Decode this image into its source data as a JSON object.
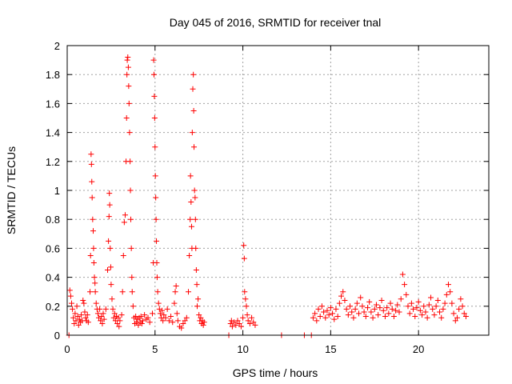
{
  "chart_data": {
    "type": "scatter",
    "title": "Day 045 of 2016, SRMTID for receiver tnal",
    "xlabel": "GPS time / hours",
    "ylabel": "SRMTID / TECUs",
    "xlim": [
      0,
      24
    ],
    "ylim": [
      0,
      2
    ],
    "xticks": [
      0,
      5,
      10,
      15,
      20
    ],
    "xtick_labels": [
      "0",
      "5",
      "10",
      "15",
      "20"
    ],
    "yticks": [
      0,
      0.2,
      0.4,
      0.6,
      0.8,
      1.0,
      1.2,
      1.4,
      1.6,
      1.8,
      2.0
    ],
    "ytick_labels": [
      "0",
      "0.2",
      "0.4",
      "0.6",
      "0.8",
      "1",
      "1.2",
      "1.4",
      "1.6",
      "1.8",
      "2"
    ],
    "grid": true,
    "marker": "+",
    "color": "#ff0000",
    "series": [
      {
        "name": "SRMTID",
        "points": [
          [
            0.1,
            0.0
          ],
          [
            0.15,
            0.31
          ],
          [
            0.2,
            0.27
          ],
          [
            0.25,
            0.22
          ],
          [
            0.3,
            0.18
          ],
          [
            0.35,
            0.12
          ],
          [
            0.4,
            0.08
          ],
          [
            0.45,
            0.15
          ],
          [
            0.5,
            0.1
          ],
          [
            0.55,
            0.2
          ],
          [
            0.6,
            0.13
          ],
          [
            0.65,
            0.07
          ],
          [
            0.7,
            0.11
          ],
          [
            0.75,
            0.09
          ],
          [
            0.8,
            0.14
          ],
          [
            0.85,
            0.1
          ],
          [
            0.9,
            0.24
          ],
          [
            0.95,
            0.22
          ],
          [
            1.0,
            0.16
          ],
          [
            1.05,
            0.12
          ],
          [
            1.1,
            0.1
          ],
          [
            1.15,
            0.14
          ],
          [
            1.2,
            0.09
          ],
          [
            1.3,
            0.3
          ],
          [
            1.33,
            0.55
          ],
          [
            1.36,
            1.25
          ],
          [
            1.38,
            1.18
          ],
          [
            1.4,
            1.06
          ],
          [
            1.42,
            0.95
          ],
          [
            1.45,
            0.8
          ],
          [
            1.48,
            0.72
          ],
          [
            1.5,
            0.6
          ],
          [
            1.52,
            0.5
          ],
          [
            1.55,
            0.4
          ],
          [
            1.58,
            0.36
          ],
          [
            1.6,
            0.3
          ],
          [
            1.65,
            0.22
          ],
          [
            1.7,
            0.18
          ],
          [
            1.75,
            0.15
          ],
          [
            1.8,
            0.12
          ],
          [
            1.85,
            0.18
          ],
          [
            1.9,
            0.1
          ],
          [
            1.95,
            0.13
          ],
          [
            2.0,
            0.08
          ],
          [
            2.05,
            0.15
          ],
          [
            2.1,
            0.11
          ],
          [
            2.2,
            0.18
          ],
          [
            2.3,
            0.45
          ],
          [
            2.35,
            0.65
          ],
          [
            2.38,
            0.82
          ],
          [
            2.4,
            0.98
          ],
          [
            2.42,
            0.9
          ],
          [
            2.45,
            0.6
          ],
          [
            2.48,
            0.47
          ],
          [
            2.5,
            0.35
          ],
          [
            2.55,
            0.25
          ],
          [
            2.6,
            0.18
          ],
          [
            2.65,
            0.12
          ],
          [
            2.7,
            0.15
          ],
          [
            2.75,
            0.1
          ],
          [
            2.8,
            0.13
          ],
          [
            2.85,
            0.08
          ],
          [
            2.9,
            0.12
          ],
          [
            2.95,
            0.06
          ],
          [
            3.0,
            0.1
          ],
          [
            3.1,
            0.14
          ],
          [
            3.15,
            0.3
          ],
          [
            3.2,
            0.55
          ],
          [
            3.25,
            0.78
          ],
          [
            3.3,
            0.83
          ],
          [
            3.35,
            1.2
          ],
          [
            3.38,
            1.5
          ],
          [
            3.4,
            1.8
          ],
          [
            3.42,
            1.9
          ],
          [
            3.45,
            1.92
          ],
          [
            3.48,
            1.85
          ],
          [
            3.5,
            1.72
          ],
          [
            3.52,
            1.6
          ],
          [
            3.55,
            1.4
          ],
          [
            3.58,
            1.2
          ],
          [
            3.6,
            1.0
          ],
          [
            3.62,
            0.8
          ],
          [
            3.65,
            0.6
          ],
          [
            3.68,
            0.4
          ],
          [
            3.7,
            0.3
          ],
          [
            3.75,
            0.2
          ],
          [
            3.8,
            0.12
          ],
          [
            3.85,
            0.08
          ],
          [
            3.9,
            0.13
          ],
          [
            3.95,
            0.09
          ],
          [
            4.0,
            0.11
          ],
          [
            4.05,
            0.07
          ],
          [
            4.1,
            0.12
          ],
          [
            4.15,
            0.09
          ],
          [
            4.2,
            0.13
          ],
          [
            4.25,
            0.08
          ],
          [
            4.3,
            0.1
          ],
          [
            4.4,
            0.14
          ],
          [
            4.5,
            0.11
          ],
          [
            4.6,
            0.12
          ],
          [
            4.7,
            0.09
          ],
          [
            4.85,
            0.15
          ],
          [
            4.9,
            0.5
          ],
          [
            4.92,
            1.9
          ],
          [
            4.94,
            1.8
          ],
          [
            4.96,
            1.65
          ],
          [
            4.98,
            1.5
          ],
          [
            5.0,
            1.3
          ],
          [
            5.02,
            1.1
          ],
          [
            5.04,
            0.95
          ],
          [
            5.06,
            0.8
          ],
          [
            5.08,
            0.65
          ],
          [
            5.1,
            0.5
          ],
          [
            5.12,
            0.4
          ],
          [
            5.15,
            0.3
          ],
          [
            5.2,
            0.22
          ],
          [
            5.25,
            0.18
          ],
          [
            5.3,
            0.15
          ],
          [
            5.35,
            0.12
          ],
          [
            5.4,
            0.17
          ],
          [
            5.45,
            0.1
          ],
          [
            5.5,
            0.14
          ],
          [
            5.6,
            0.12
          ],
          [
            5.7,
            0.18
          ],
          [
            5.8,
            0.1
          ],
          [
            5.9,
            0.13
          ],
          [
            6.0,
            0.09
          ],
          [
            6.1,
            0.22
          ],
          [
            6.15,
            0.3
          ],
          [
            6.2,
            0.34
          ],
          [
            6.25,
            0.15
          ],
          [
            6.3,
            0.1
          ],
          [
            6.4,
            0.06
          ],
          [
            6.5,
            0.05
          ],
          [
            6.6,
            0.08
          ],
          [
            6.7,
            0.1
          ],
          [
            6.8,
            0.12
          ],
          [
            6.9,
            0.3
          ],
          [
            6.95,
            0.55
          ],
          [
            7.0,
            0.8
          ],
          [
            7.02,
            1.1
          ],
          [
            7.05,
            0.92
          ],
          [
            7.08,
            0.75
          ],
          [
            7.1,
            0.6
          ],
          [
            7.12,
            1.4
          ],
          [
            7.15,
            1.7
          ],
          [
            7.18,
            1.8
          ],
          [
            7.2,
            1.55
          ],
          [
            7.22,
            1.3
          ],
          [
            7.25,
            1.0
          ],
          [
            7.28,
            0.95
          ],
          [
            7.3,
            0.8
          ],
          [
            7.32,
            0.6
          ],
          [
            7.35,
            0.45
          ],
          [
            7.38,
            0.35
          ],
          [
            7.4,
            0.2
          ],
          [
            7.45,
            0.25
          ],
          [
            7.5,
            0.14
          ],
          [
            7.55,
            0.1
          ],
          [
            7.6,
            0.12
          ],
          [
            7.65,
            0.08
          ],
          [
            7.7,
            0.1
          ],
          [
            7.75,
            0.07
          ],
          [
            7.8,
            0.09
          ],
          [
            9.2,
            0.0
          ],
          [
            9.3,
            0.08
          ],
          [
            9.35,
            0.1
          ],
          [
            9.4,
            0.06
          ],
          [
            9.5,
            0.09
          ],
          [
            9.6,
            0.07
          ],
          [
            9.7,
            0.1
          ],
          [
            9.8,
            0.08
          ],
          [
            9.9,
            0.06
          ],
          [
            10.0,
            0.12
          ],
          [
            10.05,
            0.62
          ],
          [
            10.08,
            0.53
          ],
          [
            10.1,
            0.3
          ],
          [
            10.15,
            0.25
          ],
          [
            10.2,
            0.2
          ],
          [
            10.25,
            0.14
          ],
          [
            10.3,
            0.1
          ],
          [
            10.4,
            0.08
          ],
          [
            10.5,
            0.12
          ],
          [
            10.6,
            0.09
          ],
          [
            10.7,
            0.07
          ],
          [
            12.2,
            0.0
          ],
          [
            13.5,
            0.0
          ],
          [
            13.9,
            0.0
          ],
          [
            14.0,
            0.12
          ],
          [
            14.1,
            0.15
          ],
          [
            14.2,
            0.1
          ],
          [
            14.3,
            0.18
          ],
          [
            14.4,
            0.13
          ],
          [
            14.5,
            0.2
          ],
          [
            14.6,
            0.16
          ],
          [
            14.7,
            0.12
          ],
          [
            14.8,
            0.17
          ],
          [
            14.9,
            0.14
          ],
          [
            15.0,
            0.19
          ],
          [
            15.1,
            0.15
          ],
          [
            15.2,
            0.11
          ],
          [
            15.3,
            0.18
          ],
          [
            15.4,
            0.13
          ],
          [
            15.5,
            0.22
          ],
          [
            15.6,
            0.27
          ],
          [
            15.7,
            0.3
          ],
          [
            15.8,
            0.24
          ],
          [
            15.9,
            0.18
          ],
          [
            16.0,
            0.14
          ],
          [
            16.1,
            0.2
          ],
          [
            16.2,
            0.16
          ],
          [
            16.3,
            0.12
          ],
          [
            16.4,
            0.18
          ],
          [
            16.5,
            0.22
          ],
          [
            16.6,
            0.15
          ],
          [
            16.7,
            0.26
          ],
          [
            16.8,
            0.2
          ],
          [
            16.9,
            0.16
          ],
          [
            17.0,
            0.13
          ],
          [
            17.1,
            0.19
          ],
          [
            17.2,
            0.23
          ],
          [
            17.3,
            0.16
          ],
          [
            17.4,
            0.12
          ],
          [
            17.5,
            0.18
          ],
          [
            17.6,
            0.21
          ],
          [
            17.7,
            0.14
          ],
          [
            17.8,
            0.19
          ],
          [
            17.9,
            0.24
          ],
          [
            18.0,
            0.17
          ],
          [
            18.1,
            0.13
          ],
          [
            18.2,
            0.19
          ],
          [
            18.3,
            0.15
          ],
          [
            18.4,
            0.22
          ],
          [
            18.5,
            0.18
          ],
          [
            18.6,
            0.13
          ],
          [
            18.7,
            0.17
          ],
          [
            18.8,
            0.21
          ],
          [
            18.9,
            0.16
          ],
          [
            19.0,
            0.25
          ],
          [
            19.1,
            0.42
          ],
          [
            19.2,
            0.35
          ],
          [
            19.3,
            0.28
          ],
          [
            19.4,
            0.2
          ],
          [
            19.5,
            0.15
          ],
          [
            19.6,
            0.22
          ],
          [
            19.7,
            0.18
          ],
          [
            19.8,
            0.13
          ],
          [
            19.9,
            0.19
          ],
          [
            20.0,
            0.23
          ],
          [
            20.1,
            0.17
          ],
          [
            20.2,
            0.14
          ],
          [
            20.3,
            0.2
          ],
          [
            20.4,
            0.16
          ],
          [
            20.5,
            0.12
          ],
          [
            20.6,
            0.21
          ],
          [
            20.7,
            0.26
          ],
          [
            20.8,
            0.18
          ],
          [
            20.9,
            0.14
          ],
          [
            21.0,
            0.2
          ],
          [
            21.1,
            0.24
          ],
          [
            21.2,
            0.16
          ],
          [
            21.3,
            0.12
          ],
          [
            21.4,
            0.18
          ],
          [
            21.5,
            0.22
          ],
          [
            21.6,
            0.28
          ],
          [
            21.7,
            0.35
          ],
          [
            21.8,
            0.3
          ],
          [
            21.9,
            0.22
          ],
          [
            22.0,
            0.15
          ],
          [
            22.1,
            0.1
          ],
          [
            22.2,
            0.12
          ],
          [
            22.3,
            0.18
          ],
          [
            22.4,
            0.25
          ],
          [
            22.5,
            0.2
          ],
          [
            22.6,
            0.15
          ],
          [
            22.7,
            0.13
          ]
        ]
      }
    ]
  }
}
